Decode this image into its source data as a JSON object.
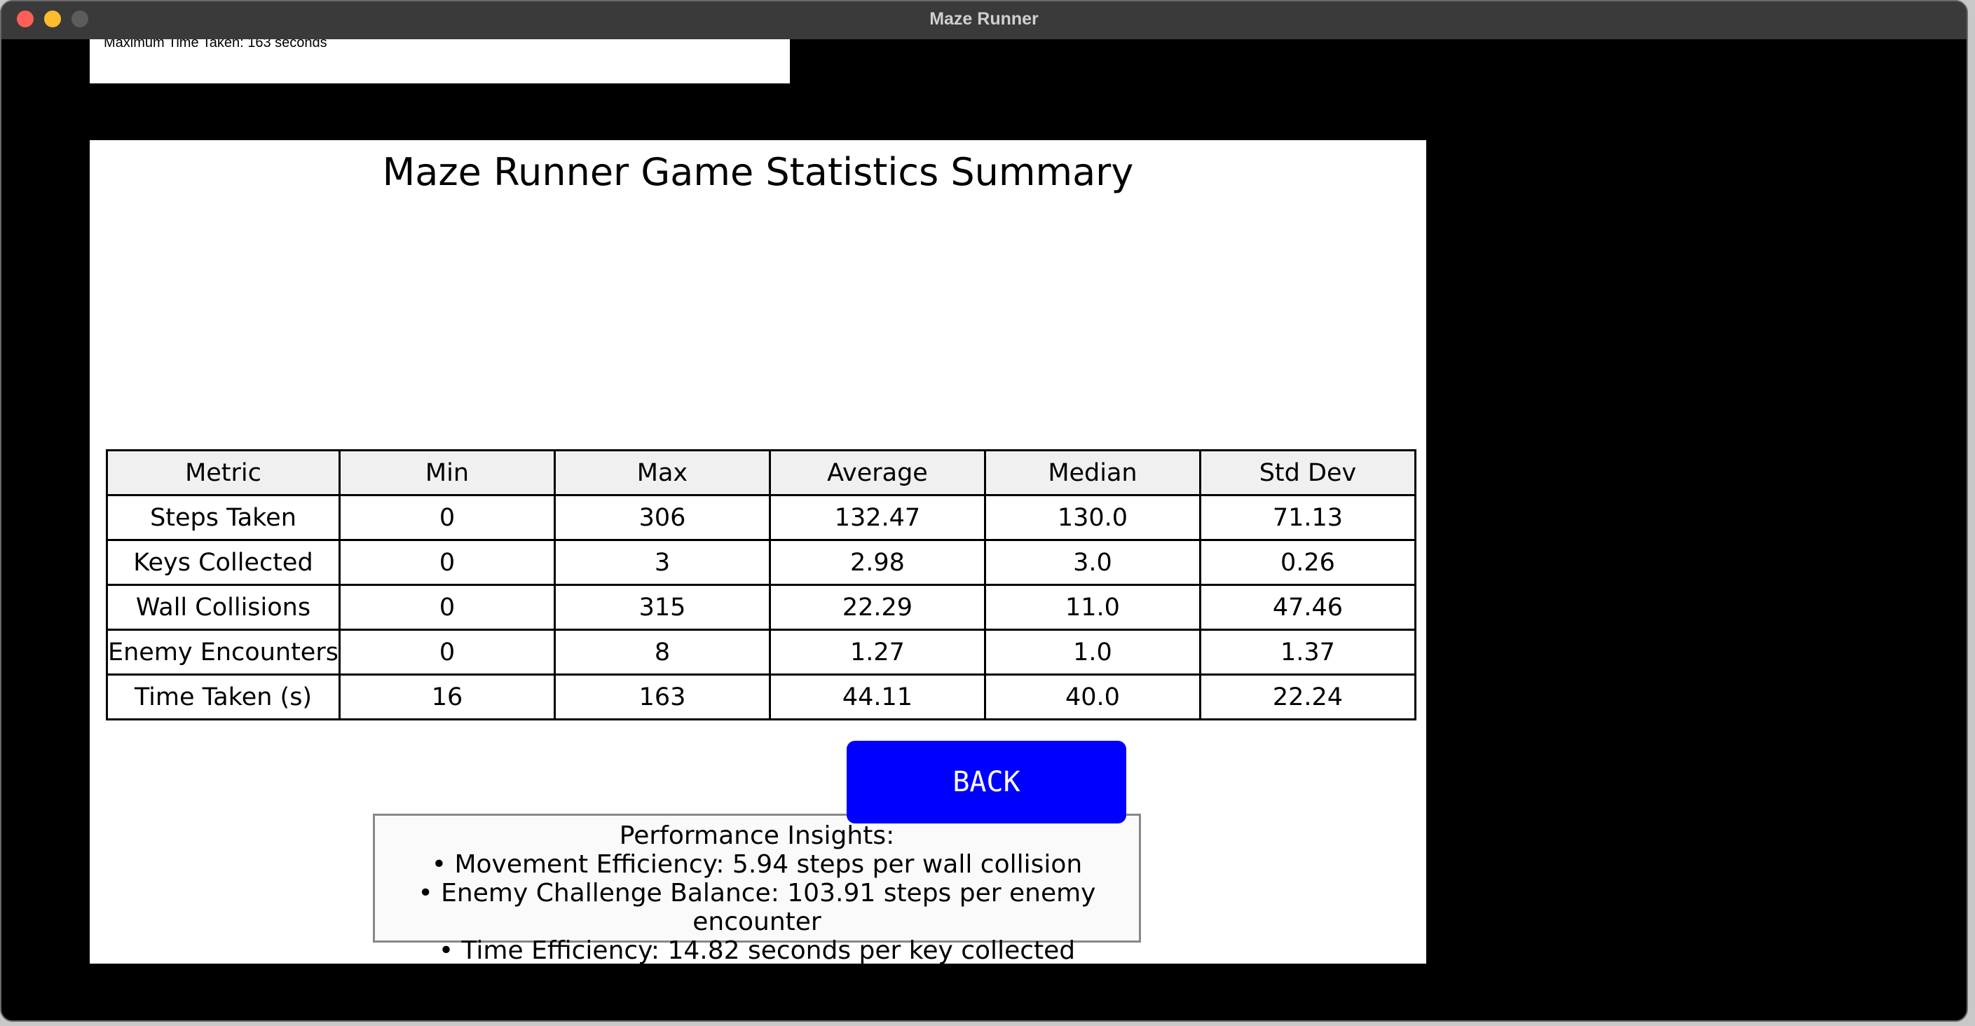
{
  "window": {
    "title": "Maze Runner"
  },
  "top_panel": {
    "text": "Maximum Time Taken: 163 seconds"
  },
  "summary": {
    "title": "Maze Runner Game Statistics Summary",
    "table": {
      "header": [
        "Metric",
        "Min",
        "Max",
        "Average",
        "Median",
        "Std Dev"
      ],
      "rows": [
        [
          "Steps Taken",
          "0",
          "306",
          "132.47",
          "130.0",
          "71.13"
        ],
        [
          "Keys Collected",
          "0",
          "3",
          "2.98",
          "3.0",
          "0.26"
        ],
        [
          "Wall Collisions",
          "0",
          "315",
          "22.29",
          "11.0",
          "47.46"
        ],
        [
          "Enemy Encounters",
          "0",
          "8",
          "1.27",
          "1.0",
          "1.37"
        ],
        [
          "Time Taken (s)",
          "16",
          "163",
          "44.11",
          "40.0",
          "22.24"
        ]
      ]
    },
    "button": "BACK",
    "insights": {
      "title": "Performance Insights:",
      "lines": [
        "• Movement Efficiency: 5.94 steps per wall collision",
        "• Enemy Challenge Balance: 103.91 steps per enemy encounter",
        "• Time Efficiency: 14.82 seconds per key collected"
      ]
    }
  }
}
